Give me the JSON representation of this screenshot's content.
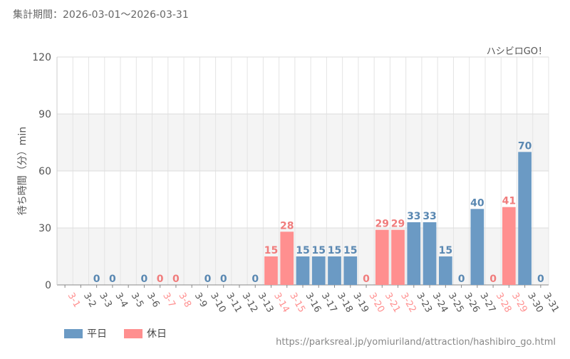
{
  "header": {
    "period": "集計期間：2026-03-01～2026-03-31"
  },
  "colors": {
    "weekday": "#6b9ac4",
    "holiday": "#ff8f8f",
    "weekday_label": "#5a88b2",
    "holiday_label": "#f07c7c"
  },
  "legend": {
    "weekday_label": "平日",
    "holiday_label": "休日"
  },
  "source": {
    "url": "https://parksreal.jp/yomiuriland/attraction/hashibiro_go.html"
  },
  "chart_data": {
    "type": "bar",
    "attraction_label": "ハシビロGO！",
    "ylabel": "待ち時間（分）min",
    "ylim": [
      0,
      120
    ],
    "yticks": [
      0,
      30,
      60,
      90,
      120
    ],
    "grid": true,
    "legend_position": "bottom-left",
    "categories": [
      "3-1",
      "3-2",
      "3-3",
      "3-4",
      "3-5",
      "3-6",
      "3-7",
      "3-8",
      "3-9",
      "3-10",
      "3-11",
      "3-12",
      "3-13",
      "3-14",
      "3-15",
      "3-16",
      "3-17",
      "3-18",
      "3-19",
      "3-20",
      "3-21",
      "3-22",
      "3-23",
      "3-24",
      "3-25",
      "3-26",
      "3-27",
      "3-28",
      "3-29",
      "3-30",
      "3-31"
    ],
    "values": [
      null,
      null,
      0,
      0,
      null,
      0,
      0,
      0,
      null,
      0,
      0,
      null,
      0,
      15,
      28,
      15,
      15,
      15,
      15,
      0,
      29,
      29,
      33,
      33,
      15,
      0,
      40,
      0,
      41,
      70,
      0
    ],
    "day_type": [
      "holiday",
      "weekday",
      "weekday",
      "weekday",
      "weekday",
      "weekday",
      "holiday",
      "holiday",
      "weekday",
      "weekday",
      "weekday",
      "weekday",
      "weekday",
      "holiday",
      "holiday",
      "weekday",
      "weekday",
      "weekday",
      "weekday",
      "holiday",
      "holiday",
      "holiday",
      "weekday",
      "weekday",
      "weekday",
      "weekday",
      "weekday",
      "holiday",
      "holiday",
      "weekday",
      "weekday"
    ]
  }
}
